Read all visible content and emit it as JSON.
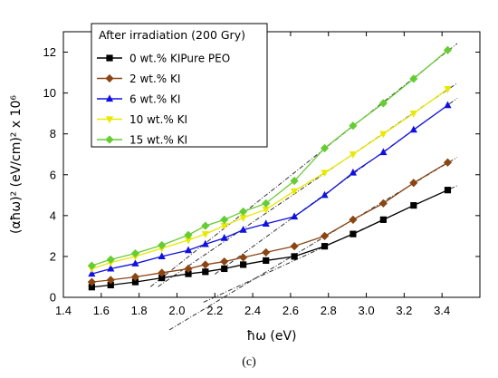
{
  "caption": "(c)",
  "chart_data": {
    "type": "scatter",
    "title": "",
    "legend_title": "After irradiation (200 Gry)",
    "legend_position": "top-left",
    "xlabel": "ħω (eV)",
    "ylabel": "(αħω)² (eV/cm)² x 10⁶",
    "xlim": [
      1.4,
      3.6
    ],
    "ylim": [
      0,
      13
    ],
    "xticks": [
      "1.4",
      "1.6",
      "1.8",
      "2.0",
      "2.2",
      "2.4",
      "2.6",
      "2.8",
      "3.0",
      "3.2",
      "3.4"
    ],
    "yticks": [
      "0",
      "2",
      "4",
      "6",
      "8",
      "10",
      "12"
    ],
    "grid": false,
    "x": [
      1.55,
      1.65,
      1.78,
      1.92,
      2.06,
      2.15,
      2.25,
      2.35,
      2.47,
      2.62,
      2.78,
      2.93,
      3.09,
      3.25,
      3.43
    ],
    "series": [
      {
        "name": "0   wt.% KIPure  PEO",
        "color": "#000000",
        "marker": "square",
        "values": [
          0.5,
          0.6,
          0.75,
          0.95,
          1.15,
          1.25,
          1.4,
          1.6,
          1.8,
          2.0,
          2.5,
          3.1,
          3.8,
          4.5,
          5.25
        ],
        "fit": {
          "x0": 2.14,
          "x1": 3.48
        }
      },
      {
        "name": "2   wt.% KI",
        "color": "#8B4513",
        "marker": "diamond",
        "values": [
          0.75,
          0.85,
          1.0,
          1.2,
          1.4,
          1.6,
          1.75,
          1.95,
          2.2,
          2.5,
          3.0,
          3.8,
          4.6,
          5.6,
          6.6
        ],
        "fit": {
          "x0": 1.96,
          "x1": 3.48
        }
      },
      {
        "name": "6   wt.% KI",
        "color": "#1010E0",
        "marker": "triangle-up",
        "values": [
          1.15,
          1.4,
          1.65,
          2.0,
          2.3,
          2.6,
          2.9,
          3.3,
          3.6,
          3.95,
          5.0,
          6.1,
          7.1,
          8.2,
          9.4
        ],
        "fit": {
          "x0": 2.2,
          "x1": 3.48
        }
      },
      {
        "name": "10  wt.% KI",
        "color": "#E8E800",
        "marker": "triangle-down",
        "values": [
          1.4,
          1.7,
          2.0,
          2.4,
          2.8,
          3.1,
          3.5,
          3.9,
          4.3,
          5.2,
          6.1,
          7.0,
          8.0,
          9.0,
          10.2
        ],
        "fit": {
          "x0": 1.9,
          "x1": 3.48
        }
      },
      {
        "name": "15  wt.% KI",
        "color": "#66CC33",
        "marker": "diamond",
        "values": [
          1.55,
          1.85,
          2.15,
          2.55,
          3.05,
          3.5,
          3.8,
          4.2,
          4.6,
          5.7,
          7.3,
          8.4,
          9.5,
          10.7,
          12.1
        ],
        "fit": {
          "x0": 1.86,
          "x1": 3.48
        }
      }
    ]
  }
}
